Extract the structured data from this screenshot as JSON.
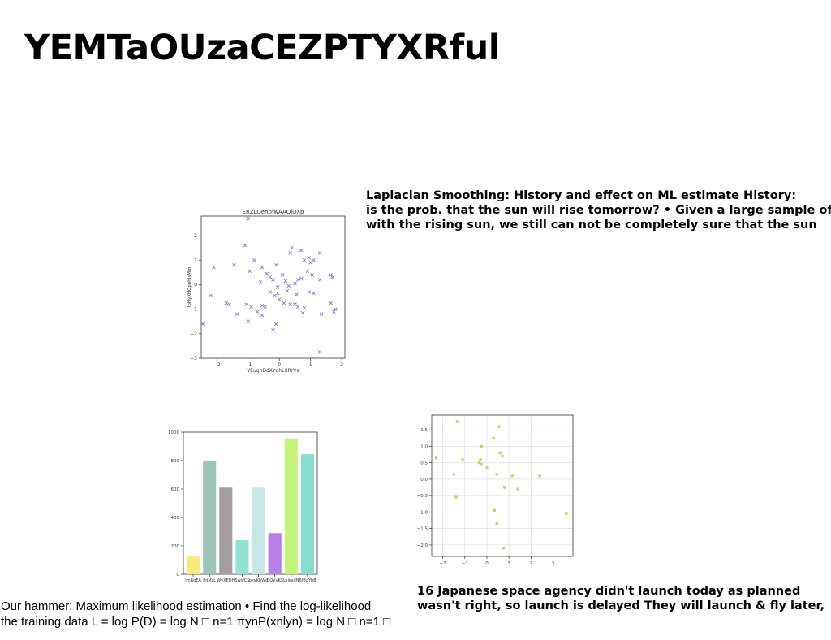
{
  "slide": {
    "title": "YEMTaOUzaCEZPTYXRful",
    "text_block_1": [
      "Laplacian Smoothing: History and effect on ML estimate History:",
      "is the prob. that the sun will rise tomorrow? • Given a large sample of",
      "with the rising sun, we still can not be completely sure that the sun"
    ],
    "text_block_2": [
      "Our hammer: Maximum likelihood estimation • Find the log-likelihood",
      "the training data L = log P(D) = log N □ n=1 πynP(xnlyn) = log N □ n=1 □"
    ],
    "text_block_3": [
      "16 Japanese space agency didn't launch today as planned",
      "wasn't right, so launch is delayed They will launch & fly later,"
    ]
  },
  "chart_data": [
    {
      "type": "scatter",
      "title": "ERZLOenbfwAAQjOXp",
      "xlabel": "YEuqhDdXYdhLXRrVs",
      "ylabel": "IpHyXHGpohIsMm",
      "marker": "x",
      "color": "#7b7bd9",
      "xlim": [
        -2.5,
        2.1
      ],
      "ylim": [
        -3,
        2.8
      ],
      "xticks": [
        -2,
        -1,
        0,
        1,
        2
      ],
      "yticks": [
        -3,
        -2,
        -1,
        0,
        1,
        2
      ],
      "grid": false,
      "points": [
        [
          -1.0,
          2.7
        ],
        [
          -1.1,
          1.6
        ],
        [
          0.35,
          1.3
        ],
        [
          0.4,
          1.5
        ],
        [
          0.7,
          1.4
        ],
        [
          1.3,
          1.3
        ],
        [
          -2.1,
          0.7
        ],
        [
          -1.45,
          0.8
        ],
        [
          -0.8,
          1.0
        ],
        [
          -0.55,
          0.7
        ],
        [
          -0.3,
          0.3
        ],
        [
          -0.1,
          0.8
        ],
        [
          0.8,
          1.0
        ],
        [
          0.95,
          1.1
        ],
        [
          1.0,
          0.9
        ],
        [
          1.1,
          1.0
        ],
        [
          1.65,
          0.4
        ],
        [
          1.7,
          0.3
        ],
        [
          -0.95,
          0.55
        ],
        [
          -0.6,
          0.1
        ],
        [
          -0.4,
          0.45
        ],
        [
          -0.2,
          0.2
        ],
        [
          -0.05,
          -0.1
        ],
        [
          0.2,
          0.15
        ],
        [
          0.5,
          0.05
        ],
        [
          0.6,
          0.2
        ],
        [
          0.7,
          0.25
        ],
        [
          1.05,
          0.4
        ],
        [
          1.3,
          0.2
        ],
        [
          0.25,
          -0.25
        ],
        [
          -2.2,
          -0.45
        ],
        [
          -1.7,
          -0.75
        ],
        [
          -1.6,
          -0.8
        ],
        [
          -1.05,
          -0.8
        ],
        [
          -0.9,
          -0.9
        ],
        [
          -0.7,
          -1.1
        ],
        [
          -0.55,
          -0.85
        ],
        [
          -0.3,
          -0.3
        ],
        [
          -0.15,
          -0.45
        ],
        [
          0.0,
          -0.6
        ],
        [
          0.15,
          -0.75
        ],
        [
          0.35,
          -0.8
        ],
        [
          0.55,
          -0.4
        ],
        [
          0.6,
          -0.9
        ],
        [
          0.8,
          -0.95
        ],
        [
          0.95,
          -0.3
        ],
        [
          1.1,
          -0.35
        ],
        [
          1.65,
          -0.75
        ],
        [
          1.75,
          -1.1
        ],
        [
          1.8,
          -1.0
        ],
        [
          -1.35,
          -1.2
        ],
        [
          -1.0,
          -1.5
        ],
        [
          -0.55,
          -1.25
        ],
        [
          -0.2,
          -1.85
        ],
        [
          -0.1,
          -1.6
        ],
        [
          0.5,
          -0.8
        ],
        [
          0.75,
          -1.15
        ],
        [
          1.35,
          -1.2
        ],
        [
          1.3,
          -2.75
        ],
        [
          -2.45,
          -1.6
        ],
        [
          -0.05,
          -0.35
        ],
        [
          0.1,
          0.4
        ],
        [
          -0.45,
          -0.9
        ],
        [
          0.9,
          0.55
        ],
        [
          0.3,
          -0.05
        ]
      ]
    },
    {
      "type": "bar",
      "categories": [
        "JmRqEA",
        "FdMzL",
        "WyXEQH",
        "SwsfCS",
        "pkyKhWd",
        "DQVvKS",
        "LylesdN",
        "BfBqYbB"
      ],
      "values": [
        125,
        795,
        610,
        240,
        610,
        290,
        955,
        845
      ],
      "colors": [
        "#f7ea7a",
        "#9cc4b8",
        "#a59ea0",
        "#8fe3d0",
        "#c8e6e6",
        "#b77fe6",
        "#c4f27a",
        "#88ddcd"
      ],
      "ylim": [
        0,
        1000
      ],
      "yticks": [
        0,
        200,
        400,
        600,
        800,
        1000
      ],
      "grid": false
    },
    {
      "type": "scatter",
      "marker": "o",
      "color": "#a6e06a",
      "xlim": [
        -2.5,
        3.9
      ],
      "ylim": [
        -2.35,
        1.95
      ],
      "xticks": [
        -2,
        -1,
        0,
        1,
        2,
        3
      ],
      "yticks": [
        -2.0,
        -1.5,
        -1.0,
        -0.5,
        0.0,
        0.5,
        1.0,
        1.5
      ],
      "grid": true,
      "points": [
        [
          -1.35,
          1.75
        ],
        [
          0.55,
          1.6
        ],
        [
          0.3,
          1.25
        ],
        [
          -0.25,
          1.0
        ],
        [
          0.6,
          0.8
        ],
        [
          0.7,
          0.7
        ],
        [
          -2.3,
          0.65
        ],
        [
          -1.1,
          0.6
        ],
        [
          -0.3,
          0.6
        ],
        [
          -0.35,
          0.5
        ],
        [
          -0.25,
          0.45
        ],
        [
          0.0,
          0.35
        ],
        [
          -1.5,
          0.15
        ],
        [
          0.45,
          0.15
        ],
        [
          1.15,
          0.1
        ],
        [
          2.4,
          0.1
        ],
        [
          0.8,
          -0.25
        ],
        [
          1.4,
          -0.3
        ],
        [
          -1.4,
          -0.55
        ],
        [
          0.35,
          -0.95
        ],
        [
          0.45,
          -1.35
        ],
        [
          3.6,
          -1.05
        ],
        [
          0.75,
          -2.1
        ]
      ]
    }
  ]
}
